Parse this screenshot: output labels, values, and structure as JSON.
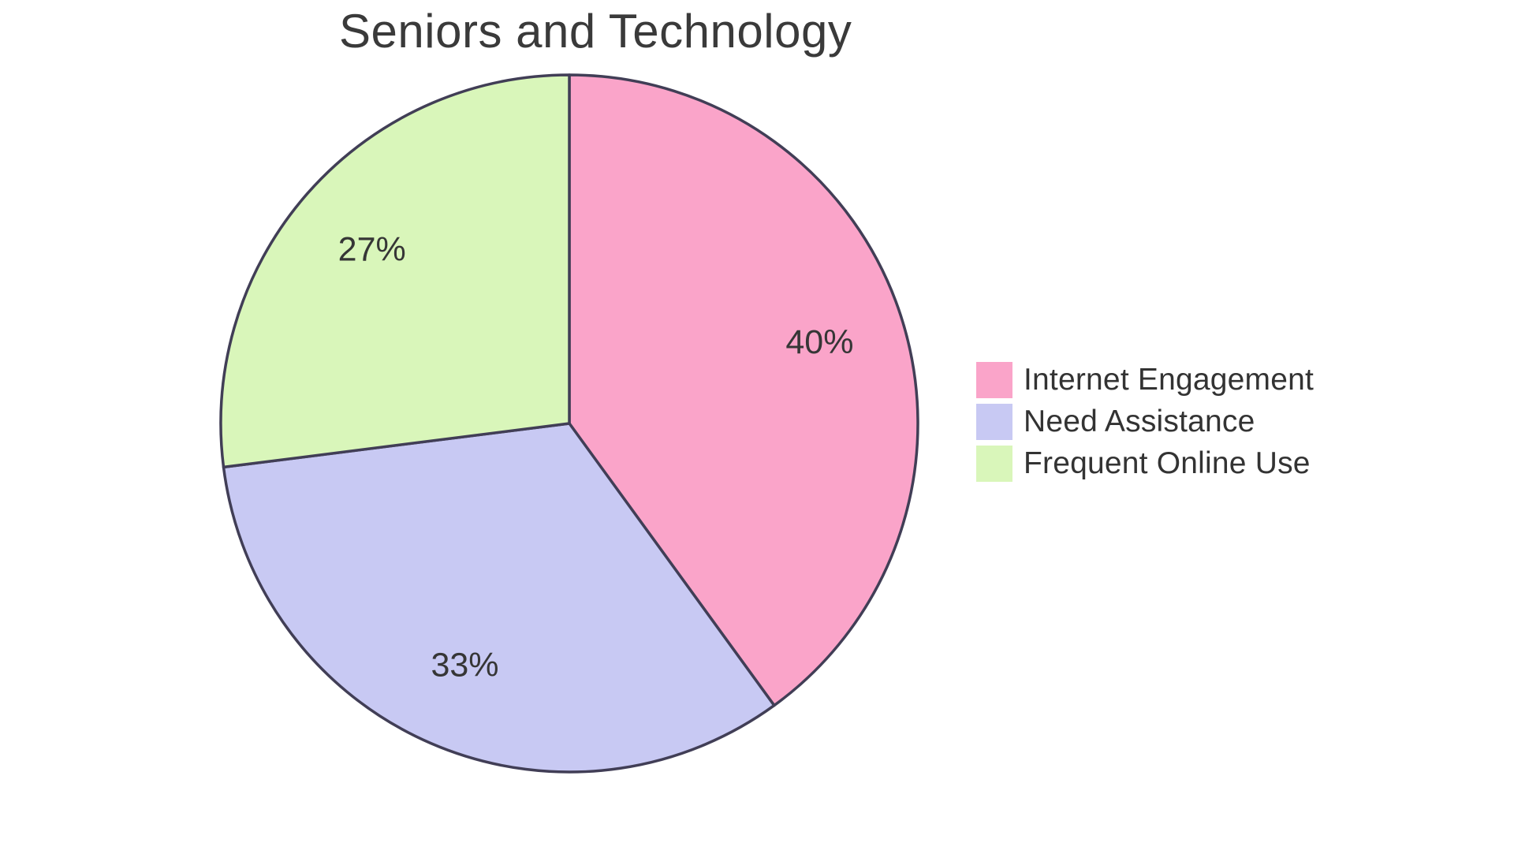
{
  "page": {
    "background_color": "#ffffff"
  },
  "chart_data": {
    "type": "pie",
    "title": "Seniors and Technology",
    "categories": [
      "Internet Engagement",
      "Need Assistance",
      "Frequent Online Use"
    ],
    "values": [
      40,
      33,
      27
    ],
    "slice_labels": [
      "40%",
      "33%",
      "27%"
    ],
    "colors": [
      "#FAA4C9",
      "#C8C9F3",
      "#D9F6BA"
    ],
    "slice_border_color": "#413E56",
    "slice_border_width": 3.5,
    "start_angle_deg": 0,
    "direction": "clockwise",
    "legend_position": "right",
    "title_color": "#3a3a3a",
    "slice_label_color": "#363636",
    "legend_text_color": "#333333",
    "grid": "off"
  }
}
